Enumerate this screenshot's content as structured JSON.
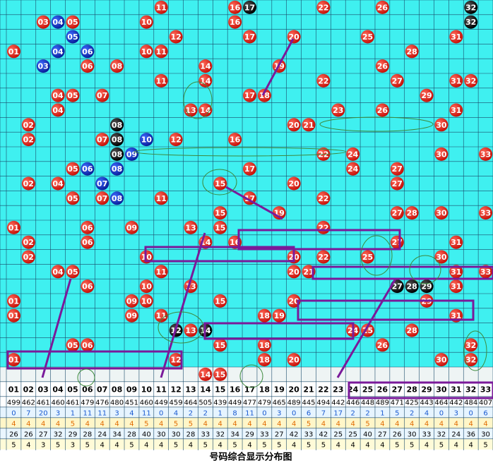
{
  "chart_data": {
    "type": "ball-grid",
    "title": "号码综合显示分布图",
    "columns": [
      "01",
      "02",
      "03",
      "04",
      "05",
      "06",
      "07",
      "08",
      "09",
      "10",
      "11",
      "12",
      "13",
      "14",
      "15",
      "16",
      "17",
      "18",
      "19",
      "20",
      "21",
      "22",
      "23",
      "24",
      "25",
      "26",
      "27",
      "28",
      "29",
      "30",
      "31",
      "32",
      "33"
    ],
    "rows": [
      {
        "red": [
          "11",
          "16",
          "22",
          "26"
        ],
        "black": [
          "17",
          "32"
        ],
        "blue": []
      },
      {
        "red": [
          "03",
          "05",
          "10",
          "16"
        ],
        "black": [
          "32"
        ],
        "blue": [
          "04"
        ]
      },
      {
        "red": [
          "12",
          "17",
          "20",
          "25",
          "31"
        ],
        "black": [],
        "blue": [
          "05"
        ]
      },
      {
        "red": [
          "01",
          "10",
          "11",
          "28"
        ],
        "black": [],
        "blue": [
          "04",
          "06"
        ]
      },
      {
        "red": [
          "06",
          "08",
          "14",
          "19",
          "26"
        ],
        "black": [],
        "blue": [
          "03"
        ]
      },
      {
        "red": [
          "11",
          "14",
          "22",
          "27",
          "31",
          "32"
        ],
        "black": [],
        "blue": []
      },
      {
        "red": [
          "04",
          "05",
          "07",
          "17",
          "18",
          "29"
        ],
        "black": [],
        "blue": []
      },
      {
        "red": [
          "04",
          "13",
          "14",
          "23",
          "26",
          "31"
        ],
        "black": [],
        "blue": []
      },
      {
        "red": [
          "02",
          "20",
          "21",
          "30"
        ],
        "black": [
          "08"
        ],
        "blue": []
      },
      {
        "red": [
          "02",
          "07",
          "12",
          "16"
        ],
        "black": [
          "08"
        ],
        "blue": [
          "10"
        ]
      },
      {
        "red": [
          "22",
          "24",
          "30",
          "33"
        ],
        "black": [
          "08"
        ],
        "blue": [
          "09"
        ]
      },
      {
        "red": [
          "05",
          "17",
          "24",
          "27"
        ],
        "black": [],
        "blue": [
          "06",
          "08"
        ]
      },
      {
        "red": [
          "02",
          "04",
          "15",
          "20",
          "27"
        ],
        "black": [],
        "blue": [
          "07"
        ]
      },
      {
        "red": [
          "05",
          "07",
          "11",
          "17",
          "22"
        ],
        "black": [],
        "blue": [
          "08"
        ]
      },
      {
        "red": [
          "15",
          "19",
          "27",
          "28",
          "30",
          "33"
        ],
        "black": [],
        "blue": []
      },
      {
        "red": [
          "01",
          "06",
          "09",
          "13",
          "15",
          "22"
        ],
        "black": [],
        "blue": []
      },
      {
        "red": [
          "02",
          "06",
          "14",
          "16",
          "27",
          "31"
        ],
        "black": [],
        "blue": []
      },
      {
        "red": [
          "02",
          "10",
          "20",
          "22",
          "25",
          "30"
        ],
        "black": [],
        "blue": []
      },
      {
        "red": [
          "04",
          "05",
          "11",
          "20",
          "21",
          "31",
          "33"
        ],
        "black": [],
        "blue": []
      },
      {
        "red": [
          "06",
          "10",
          "13",
          "31"
        ],
        "black": [
          "27",
          "28",
          "29"
        ],
        "blue": []
      },
      {
        "red": [
          "01",
          "09",
          "10",
          "15",
          "20",
          "29"
        ],
        "black": [],
        "blue": []
      },
      {
        "red": [
          "01",
          "09",
          "11",
          "18",
          "19",
          "31"
        ],
        "black": [],
        "blue": []
      },
      {
        "red": [
          "13",
          "24",
          "25",
          "28"
        ],
        "black": [
          "12",
          "14"
        ],
        "blue": []
      },
      {
        "red": [
          "05",
          "06",
          "15",
          "18",
          "26",
          "32"
        ],
        "black": [],
        "blue": []
      },
      {
        "red": [
          "01",
          "12",
          "18",
          "20",
          "30",
          "32"
        ],
        "black": [],
        "blue": []
      },
      {
        "red": [
          "14",
          "15"
        ],
        "black": [],
        "blue": []
      }
    ],
    "stats": [
      [
        499,
        462,
        461,
        460,
        461,
        479,
        476,
        480,
        451,
        460,
        449,
        459,
        464,
        505,
        439,
        449,
        477,
        479,
        465,
        489,
        445,
        494,
        442,
        446,
        448,
        489,
        471,
        425,
        443,
        464,
        442,
        484,
        407
      ],
      [
        0,
        7,
        20,
        3,
        1,
        11,
        11,
        3,
        4,
        11,
        0,
        4,
        2,
        2,
        1,
        8,
        11,
        0,
        3,
        0,
        6,
        7,
        17,
        2,
        2,
        1,
        5,
        2,
        4,
        0,
        3,
        0,
        6
      ],
      [
        4,
        4,
        4,
        4,
        5,
        4,
        4,
        4,
        4,
        5,
        4,
        5,
        5,
        4,
        4,
        4,
        4,
        4,
        4,
        4,
        5,
        4,
        4,
        4,
        5,
        4,
        4,
        4,
        4,
        4,
        4,
        4,
        4
      ],
      [
        26,
        26,
        27,
        32,
        29,
        28,
        24,
        34,
        28,
        40,
        30,
        30,
        28,
        33,
        32,
        34,
        29,
        33,
        27,
        42,
        33,
        42,
        25,
        25,
        40,
        27,
        26,
        30,
        33,
        32,
        24,
        36,
        30
      ],
      [
        5,
        4,
        3,
        5,
        3,
        5,
        4,
        4,
        5,
        4,
        4,
        5,
        4,
        5,
        4,
        5,
        4,
        5,
        5,
        4,
        5,
        5,
        4,
        4,
        4,
        4,
        5,
        5,
        4,
        5,
        4,
        4,
        5
      ]
    ]
  }
}
